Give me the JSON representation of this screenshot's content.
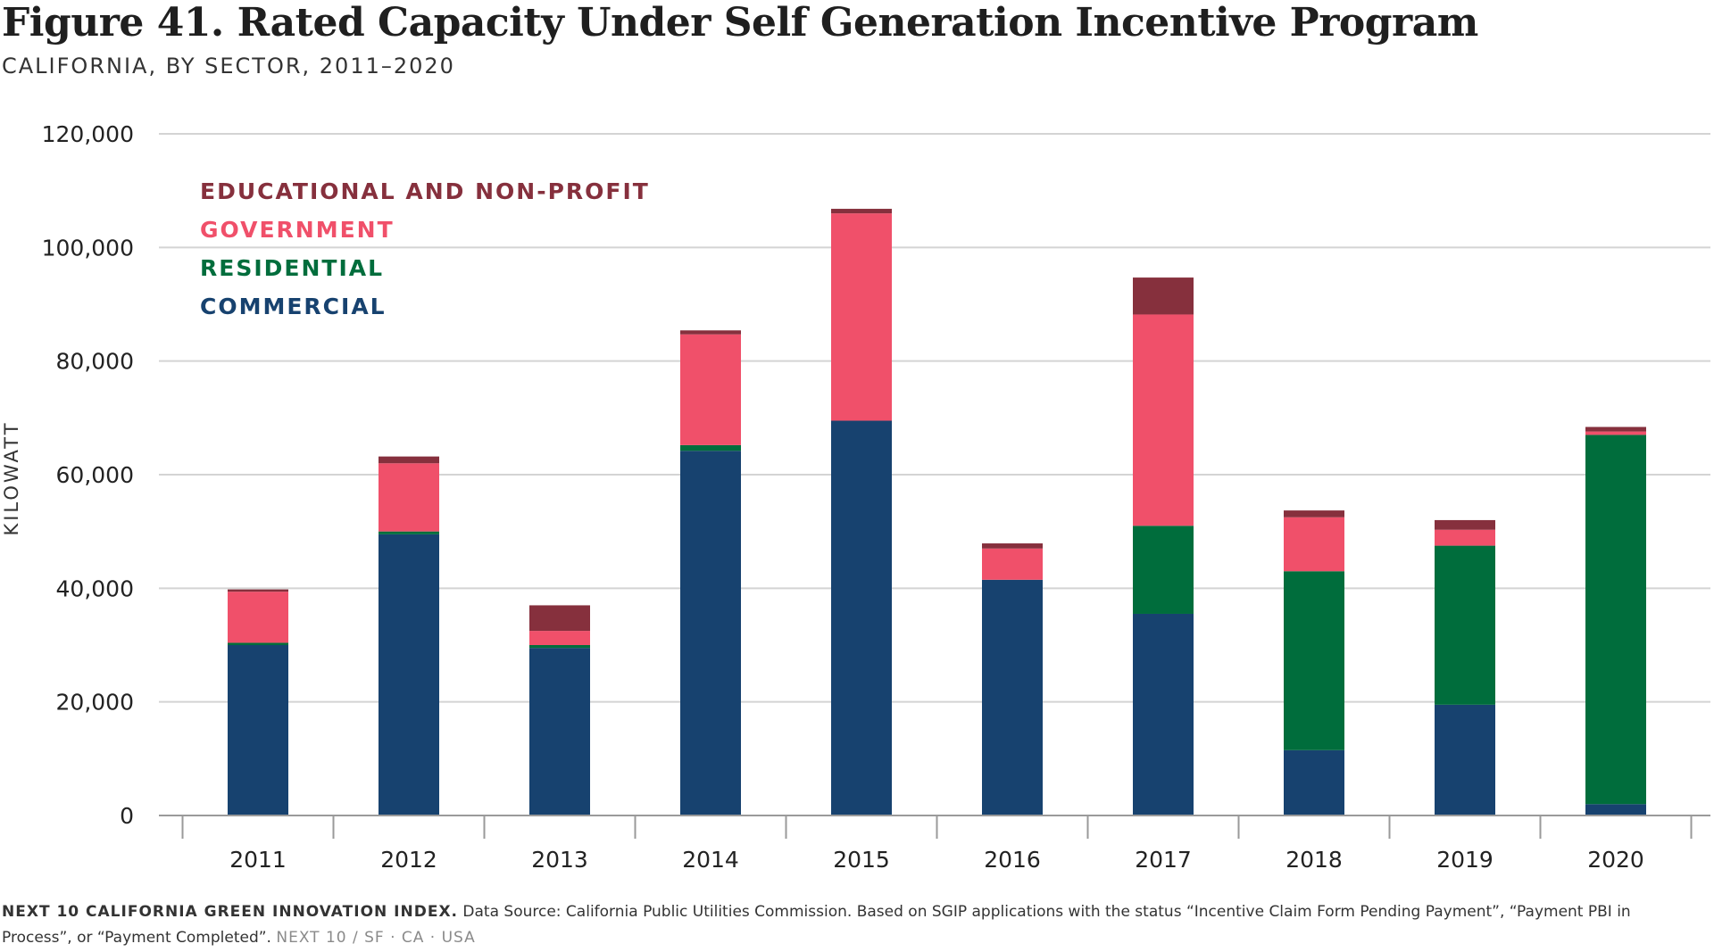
{
  "header": {
    "title": "Figure 41. Rated Capacity Under Self Generation Incentive Program",
    "subtitle": "CALIFORNIA, BY SECTOR, 2011–2020"
  },
  "chart_data": {
    "type": "bar",
    "stacked": true,
    "title": "Figure 41. Rated Capacity Under Self Generation Incentive Program",
    "subtitle": "CALIFORNIA, BY SECTOR, 2011–2020",
    "xlabel": "",
    "ylabel": "KILOWATT",
    "ylim": [
      0,
      120000
    ],
    "yticks": [
      0,
      20000,
      40000,
      60000,
      80000,
      100000,
      120000
    ],
    "ytick_labels": [
      "0",
      "20,000",
      "40,000",
      "60,000",
      "80,000",
      "100,000",
      "120,000"
    ],
    "grid": true,
    "legend_position": "top-left",
    "categories": [
      "2011",
      "2012",
      "2013",
      "2014",
      "2015",
      "2016",
      "2017",
      "2018",
      "2019",
      "2020"
    ],
    "series": [
      {
        "name": "COMMERCIAL",
        "color": "#17426f",
        "values": [
          30000,
          49500,
          29500,
          64200,
          69500,
          41500,
          35500,
          11500,
          19500,
          2000
        ]
      },
      {
        "name": "RESIDENTIAL",
        "color": "#006d3c",
        "values": [
          400,
          500,
          500,
          1000,
          0,
          0,
          15500,
          31500,
          28000,
          65000
        ]
      },
      {
        "name": "GOVERNMENT",
        "color": "#f0506a",
        "values": [
          9000,
          12000,
          2500,
          19500,
          36500,
          5500,
          37200,
          9500,
          2800,
          600
        ]
      },
      {
        "name": "EDUCATIONAL AND NON-PROFIT",
        "color": "#86303d",
        "values": [
          400,
          1200,
          4500,
          700,
          800,
          900,
          6500,
          1200,
          1700,
          800
        ]
      }
    ]
  },
  "footnote": {
    "brand": "NEXT 10 CALIFORNIA GREEN INNOVATION INDEX.",
    "text": "Data Source: California Public Utilities Commission. Based on SGIP applications with the status “Incentive Claim Form Pending Payment”, “Payment PBI in Process”, or “Payment Completed”.",
    "tagline": "NEXT 10  /  SF · CA · USA"
  }
}
